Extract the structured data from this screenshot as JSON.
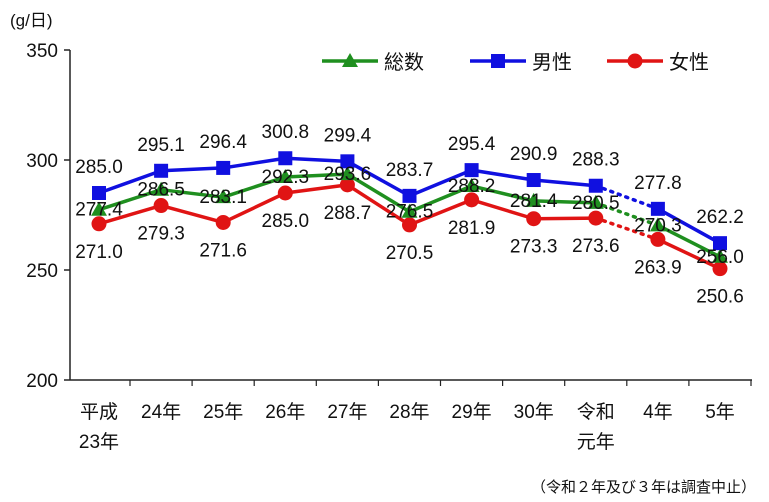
{
  "chart_data": {
    "type": "line",
    "ylabel": "(g/日)",
    "ylim": [
      200,
      350
    ],
    "yticks": [
      200,
      250,
      300,
      350
    ],
    "categories": [
      [
        "平成",
        "23年"
      ],
      [
        "24年"
      ],
      [
        "25年"
      ],
      [
        "26年"
      ],
      [
        "27年"
      ],
      [
        "28年"
      ],
      [
        "29年"
      ],
      [
        "30年"
      ],
      [
        "令和",
        "元年"
      ],
      [
        "4年"
      ],
      [
        "5年"
      ]
    ],
    "series": [
      {
        "name": "総数",
        "color": "#1f8f1f",
        "marker": "triangle",
        "values": [
          277.4,
          286.5,
          283.1,
          292.3,
          293.6,
          276.5,
          288.2,
          281.4,
          280.5,
          270.3,
          256.0
        ]
      },
      {
        "name": "男性",
        "color": "#1010e0",
        "marker": "square",
        "values": [
          285.0,
          295.1,
          296.4,
          300.8,
          299.4,
          283.7,
          295.4,
          290.9,
          288.3,
          277.8,
          262.2
        ]
      },
      {
        "name": "女性",
        "color": "#e01414",
        "marker": "circle",
        "values": [
          271.0,
          279.3,
          271.6,
          285.0,
          288.7,
          270.5,
          281.9,
          273.3,
          273.6,
          263.9,
          250.6
        ]
      }
    ],
    "legend": "top-right",
    "grid": false,
    "gap_note": "（令和２年及び３年は調査中止）"
  }
}
